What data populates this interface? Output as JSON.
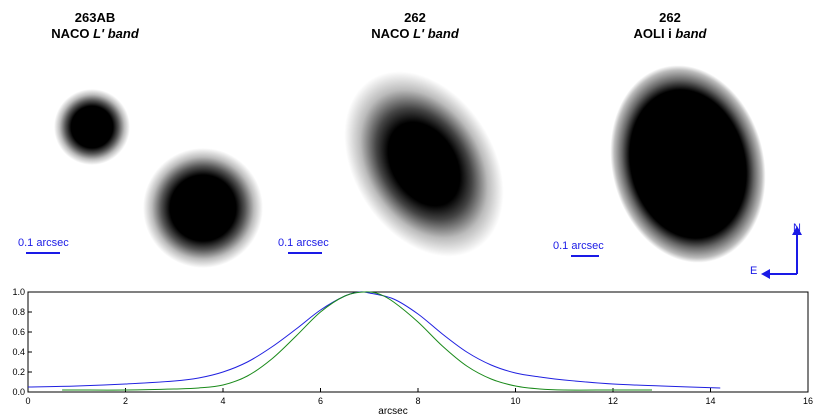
{
  "panels": [
    {
      "title_line1": "263AB",
      "title_prefix": "NACO ",
      "title_band": "L' band",
      "scale_label": "0.1 arcsec"
    },
    {
      "title_line1": "262",
      "title_prefix": "NACO ",
      "title_band": "L' band",
      "scale_label": "0.1 arcsec"
    },
    {
      "title_line1": "262",
      "title_prefix": "AOLI i ",
      "title_band": "band",
      "scale_label": "0.1 arcsec"
    }
  ],
  "compass": {
    "north": "N",
    "east": "E"
  },
  "colors": {
    "accent": "#1a1ae6",
    "blue_curve": "#2020e0",
    "green_curve": "#1a8a1a"
  },
  "chart_data": {
    "type": "line",
    "title": "",
    "xlabel": "arcsec",
    "ylabel": "",
    "xlim": [
      0,
      16
    ],
    "ylim": [
      0,
      1.0
    ],
    "xticks": [
      0,
      2,
      4,
      6,
      8,
      10,
      12,
      14,
      16
    ],
    "yticks": [
      0.0,
      0.2,
      0.4,
      0.6,
      0.8,
      1.0
    ],
    "series": [
      {
        "name": "blue",
        "x": [
          0,
          1,
          2,
          3,
          3.5,
          4,
          4.5,
          5,
          5.5,
          6,
          6.5,
          6.8,
          7,
          7.5,
          8,
          8.5,
          9,
          9.5,
          10,
          10.5,
          11,
          12,
          13,
          14.2
        ],
        "y": [
          0.05,
          0.06,
          0.08,
          0.11,
          0.14,
          0.2,
          0.3,
          0.45,
          0.63,
          0.82,
          0.96,
          1.0,
          0.99,
          0.93,
          0.78,
          0.58,
          0.4,
          0.27,
          0.19,
          0.15,
          0.12,
          0.08,
          0.06,
          0.04
        ]
      },
      {
        "name": "green",
        "x": [
          0.7,
          1,
          2,
          3,
          3.5,
          4,
          4.5,
          5,
          5.5,
          6,
          6.5,
          6.9,
          7.2,
          7.5,
          8,
          8.5,
          9,
          9.5,
          10,
          10.5,
          11,
          12,
          12.8
        ],
        "y": [
          0.02,
          0.02,
          0.02,
          0.03,
          0.04,
          0.07,
          0.16,
          0.33,
          0.56,
          0.8,
          0.96,
          1.0,
          0.98,
          0.9,
          0.7,
          0.46,
          0.26,
          0.13,
          0.06,
          0.03,
          0.02,
          0.02,
          0.02
        ]
      }
    ]
  }
}
